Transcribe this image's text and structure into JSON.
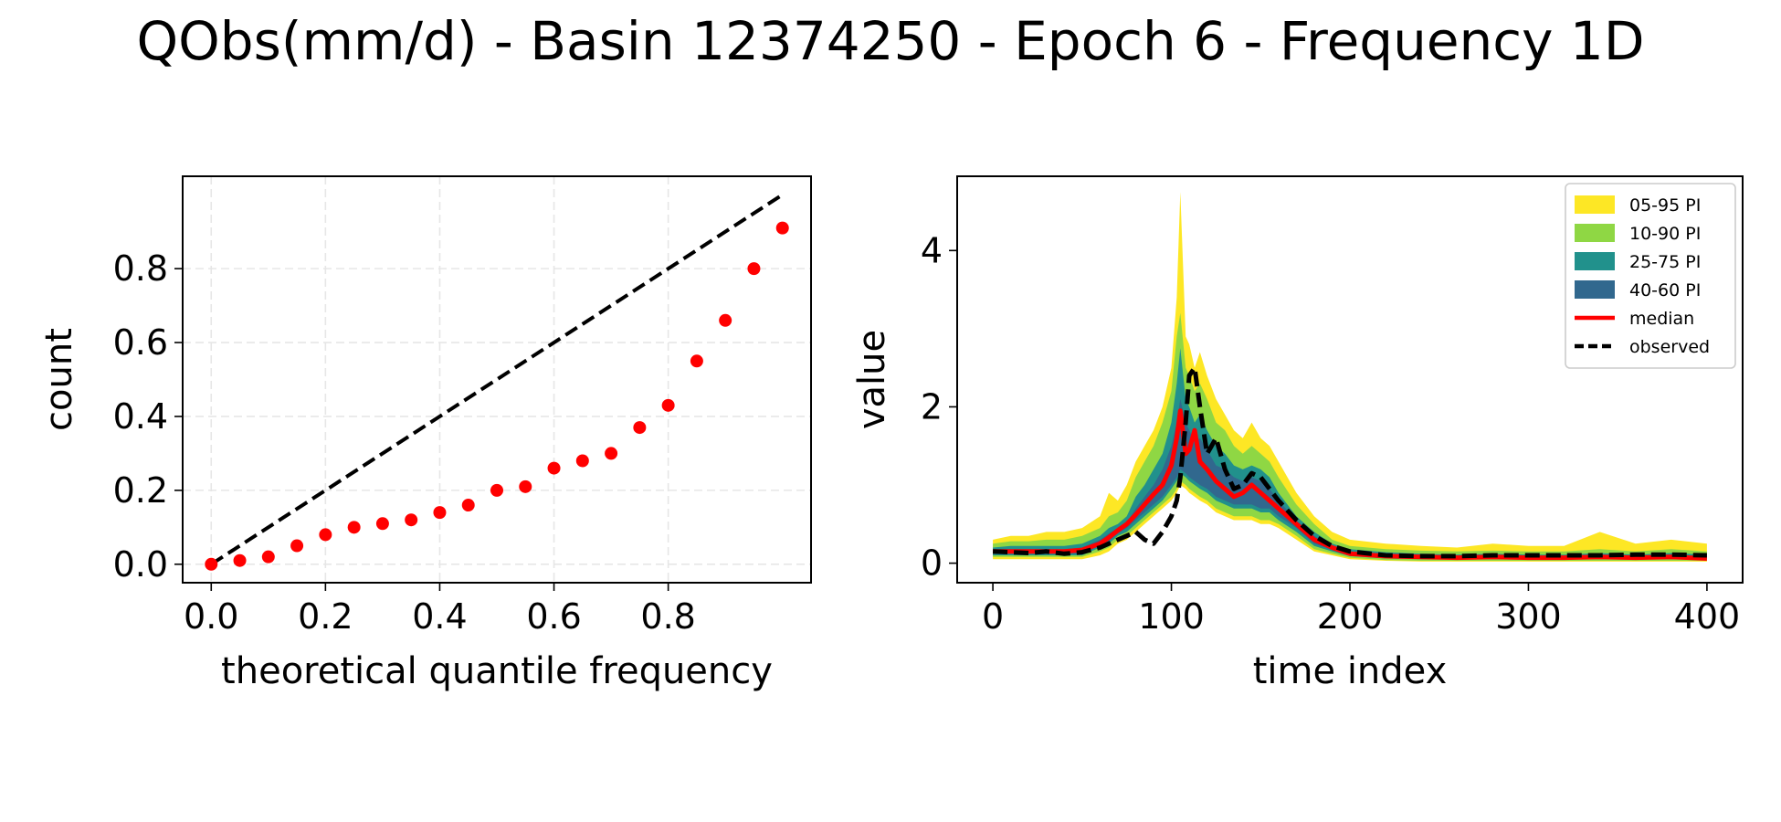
{
  "figure": {
    "title": "QObs(mm/d) - Basin 12374250 - Epoch 6 - Frequency 1D"
  },
  "chart_data": [
    {
      "type": "scatter",
      "xlabel": "theoretical quantile frequency",
      "ylabel": "count",
      "xlim": [
        -0.05,
        1.05
      ],
      "ylim": [
        -0.05,
        1.05
      ],
      "xticks": [
        0.0,
        0.2,
        0.4,
        0.6,
        0.8
      ],
      "yticks": [
        0.0,
        0.2,
        0.4,
        0.6,
        0.8
      ],
      "x_tick_labels": [
        "0.0",
        "0.2",
        "0.4",
        "0.6",
        "0.8"
      ],
      "y_tick_labels": [
        "0.0",
        "0.2",
        "0.4",
        "0.6",
        "0.8"
      ],
      "grid": true,
      "reference_line": {
        "x": [
          0,
          1
        ],
        "y": [
          0,
          1
        ],
        "style": "dashed",
        "color": "#000000"
      },
      "points": {
        "x": [
          0.0,
          0.05,
          0.1,
          0.15,
          0.2,
          0.25,
          0.3,
          0.35,
          0.4,
          0.45,
          0.5,
          0.55,
          0.6,
          0.65,
          0.7,
          0.75,
          0.8,
          0.85,
          0.9,
          0.95,
          1.0
        ],
        "y": [
          0.0,
          0.01,
          0.02,
          0.05,
          0.08,
          0.1,
          0.11,
          0.12,
          0.14,
          0.16,
          0.2,
          0.21,
          0.26,
          0.28,
          0.3,
          0.37,
          0.43,
          0.55,
          0.66,
          0.8,
          0.91
        ],
        "color": "#ff0000"
      }
    },
    {
      "type": "line",
      "xlabel": "time index",
      "ylabel": "value",
      "xlim": [
        -20,
        420
      ],
      "ylim": [
        -0.25,
        4.95
      ],
      "xticks": [
        0,
        100,
        200,
        300,
        400
      ],
      "yticks": [
        0,
        2,
        4
      ],
      "x_tick_labels": [
        "0",
        "100",
        "200",
        "300",
        "400"
      ],
      "y_tick_labels": [
        "0",
        "2",
        "4"
      ],
      "grid": false,
      "legend_position": "top-right",
      "legend": [
        {
          "label": "05-95 PI",
          "kind": "patch",
          "color": "#fde725"
        },
        {
          "label": "10-90 PI",
          "kind": "patch",
          "color": "#8fd744"
        },
        {
          "label": "25-75 PI",
          "kind": "patch",
          "color": "#21918c"
        },
        {
          "label": "40-60 PI",
          "kind": "patch",
          "color": "#31688e"
        },
        {
          "label": "median",
          "kind": "line",
          "color": "#ff0000",
          "style": "solid"
        },
        {
          "label": "observed",
          "kind": "line",
          "color": "#000000",
          "style": "dashed"
        }
      ],
      "x": [
        0,
        10,
        20,
        30,
        40,
        50,
        60,
        65,
        70,
        75,
        80,
        85,
        90,
        95,
        100,
        103,
        105,
        108,
        110,
        113,
        116,
        120,
        125,
        130,
        135,
        140,
        145,
        150,
        155,
        160,
        170,
        180,
        190,
        200,
        220,
        240,
        260,
        280,
        300,
        320,
        340,
        360,
        380,
        400
      ],
      "series": [
        {
          "name": "05-95 PI",
          "lower": [
            0.05,
            0.05,
            0.05,
            0.05,
            0.05,
            0.05,
            0.1,
            0.15,
            0.25,
            0.3,
            0.4,
            0.5,
            0.6,
            0.7,
            0.8,
            0.9,
            1.0,
            0.95,
            0.9,
            0.85,
            0.8,
            0.75,
            0.65,
            0.6,
            0.55,
            0.55,
            0.55,
            0.5,
            0.5,
            0.45,
            0.3,
            0.15,
            0.1,
            0.05,
            0.03,
            0.02,
            0.02,
            0.02,
            0.02,
            0.02,
            0.02,
            0.02,
            0.02,
            0.02
          ],
          "upper": [
            0.3,
            0.35,
            0.35,
            0.4,
            0.4,
            0.45,
            0.6,
            0.9,
            0.8,
            1.0,
            1.3,
            1.5,
            1.7,
            2.0,
            2.5,
            3.4,
            4.75,
            2.9,
            2.8,
            2.5,
            2.7,
            2.4,
            2.1,
            1.9,
            1.7,
            1.6,
            1.8,
            1.6,
            1.5,
            1.3,
            0.9,
            0.6,
            0.4,
            0.3,
            0.25,
            0.22,
            0.2,
            0.25,
            0.22,
            0.22,
            0.4,
            0.25,
            0.3,
            0.25
          ]
        },
        {
          "name": "10-90 PI",
          "lower": [
            0.08,
            0.08,
            0.08,
            0.08,
            0.08,
            0.08,
            0.15,
            0.2,
            0.3,
            0.35,
            0.45,
            0.55,
            0.65,
            0.75,
            0.85,
            0.95,
            1.05,
            1.0,
            0.95,
            0.9,
            0.85,
            0.8,
            0.7,
            0.65,
            0.6,
            0.6,
            0.6,
            0.55,
            0.55,
            0.5,
            0.35,
            0.18,
            0.12,
            0.07,
            0.04,
            0.03,
            0.03,
            0.03,
            0.03,
            0.03,
            0.03,
            0.03,
            0.03,
            0.03
          ],
          "upper": [
            0.25,
            0.28,
            0.28,
            0.3,
            0.3,
            0.35,
            0.45,
            0.6,
            0.65,
            0.8,
            1.1,
            1.3,
            1.5,
            1.8,
            2.2,
            2.9,
            3.2,
            2.5,
            2.4,
            2.2,
            2.3,
            2.1,
            1.8,
            1.7,
            1.5,
            1.4,
            1.5,
            1.4,
            1.3,
            1.1,
            0.75,
            0.5,
            0.3,
            0.22,
            0.18,
            0.16,
            0.15,
            0.16,
            0.15,
            0.15,
            0.18,
            0.15,
            0.18,
            0.15
          ]
        },
        {
          "name": "25-75 PI",
          "lower": [
            0.1,
            0.1,
            0.1,
            0.1,
            0.1,
            0.1,
            0.2,
            0.25,
            0.35,
            0.4,
            0.5,
            0.6,
            0.7,
            0.8,
            0.95,
            1.05,
            1.15,
            1.1,
            1.05,
            1.0,
            0.95,
            0.9,
            0.8,
            0.75,
            0.7,
            0.7,
            0.7,
            0.65,
            0.65,
            0.55,
            0.4,
            0.22,
            0.15,
            0.09,
            0.06,
            0.05,
            0.05,
            0.05,
            0.05,
            0.05,
            0.05,
            0.05,
            0.05,
            0.05
          ],
          "upper": [
            0.2,
            0.22,
            0.22,
            0.22,
            0.22,
            0.25,
            0.35,
            0.45,
            0.5,
            0.6,
            0.85,
            1.0,
            1.2,
            1.4,
            1.8,
            2.3,
            2.75,
            2.1,
            2.0,
            1.8,
            1.9,
            1.7,
            1.5,
            1.4,
            1.25,
            1.2,
            1.25,
            1.2,
            1.1,
            0.9,
            0.6,
            0.4,
            0.25,
            0.18,
            0.14,
            0.12,
            0.11,
            0.12,
            0.11,
            0.11,
            0.13,
            0.11,
            0.13,
            0.11
          ]
        },
        {
          "name": "40-60 PI",
          "lower": [
            0.12,
            0.12,
            0.12,
            0.12,
            0.12,
            0.12,
            0.22,
            0.28,
            0.38,
            0.45,
            0.55,
            0.65,
            0.75,
            0.85,
            1.0,
            1.1,
            1.2,
            1.15,
            1.1,
            1.05,
            1.0,
            0.95,
            0.85,
            0.8,
            0.75,
            0.75,
            0.75,
            0.7,
            0.7,
            0.6,
            0.45,
            0.25,
            0.17,
            0.1,
            0.07,
            0.06,
            0.06,
            0.06,
            0.06,
            0.06,
            0.06,
            0.06,
            0.06,
            0.06
          ],
          "upper": [
            0.17,
            0.18,
            0.18,
            0.18,
            0.18,
            0.2,
            0.3,
            0.38,
            0.45,
            0.52,
            0.7,
            0.85,
            1.0,
            1.2,
            1.5,
            1.8,
            2.1,
            1.8,
            1.7,
            1.55,
            1.6,
            1.45,
            1.25,
            1.2,
            1.1,
            1.05,
            1.1,
            1.05,
            0.95,
            0.8,
            0.55,
            0.35,
            0.22,
            0.15,
            0.12,
            0.1,
            0.09,
            0.1,
            0.09,
            0.09,
            0.1,
            0.09,
            0.1,
            0.09
          ]
        },
        {
          "name": "median",
          "values": [
            0.15,
            0.15,
            0.15,
            0.15,
            0.15,
            0.17,
            0.25,
            0.33,
            0.42,
            0.5,
            0.62,
            0.75,
            0.88,
            1.0,
            1.25,
            1.6,
            1.95,
            1.4,
            1.45,
            1.7,
            1.3,
            1.2,
            1.05,
            0.95,
            0.85,
            0.9,
            1.0,
            0.9,
            0.8,
            0.7,
            0.5,
            0.3,
            0.2,
            0.12,
            0.09,
            0.08,
            0.07,
            0.08,
            0.07,
            0.07,
            0.08,
            0.07,
            0.08,
            0.06
          ]
        },
        {
          "name": "observed",
          "values": [
            0.15,
            0.14,
            0.13,
            0.15,
            0.12,
            0.14,
            0.2,
            0.25,
            0.3,
            0.35,
            0.4,
            0.3,
            0.25,
            0.4,
            0.6,
            0.8,
            1.1,
            1.8,
            2.4,
            2.5,
            2.0,
            1.4,
            1.6,
            1.2,
            0.95,
            1.0,
            1.15,
            1.1,
            0.95,
            0.8,
            0.55,
            0.35,
            0.22,
            0.15,
            0.1,
            0.09,
            0.09,
            0.1,
            0.1,
            0.1,
            0.1,
            0.11,
            0.11,
            0.1
          ]
        }
      ]
    }
  ]
}
